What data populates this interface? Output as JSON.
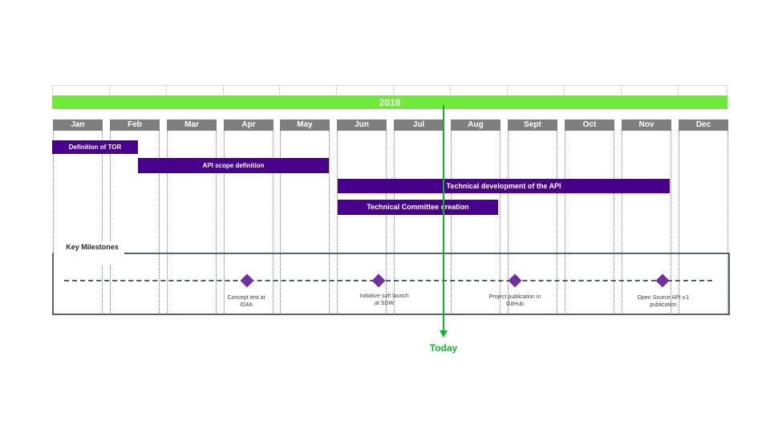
{
  "year": "2018",
  "months": [
    "Jan",
    "Feb",
    "Mar",
    "Apr",
    "May",
    "Jun",
    "Jul",
    "Aug",
    "Sept",
    "Oct",
    "Nov",
    "Dec"
  ],
  "tasks": [
    {
      "label": "Definition of TOR"
    },
    {
      "label": "API scope definition"
    },
    {
      "label": "Technical development of the API"
    },
    {
      "label": "Technical Committee creation"
    }
  ],
  "milestones_title": "Key Milestones",
  "milestones": [
    {
      "label": "Concept test at ID4A"
    },
    {
      "label": "Initiative soft launch at SDW"
    },
    {
      "label": "Project publication in GitHub"
    },
    {
      "label": "Open Source API v.1 publication"
    }
  ],
  "today_label": "Today",
  "colors": {
    "year_bar": "#6fe93b",
    "month_header": "#7f7f7f",
    "task": "#48008c",
    "milestone": "#7030a0",
    "today": "#16b22d",
    "milestone_border": "#5a6270"
  }
}
